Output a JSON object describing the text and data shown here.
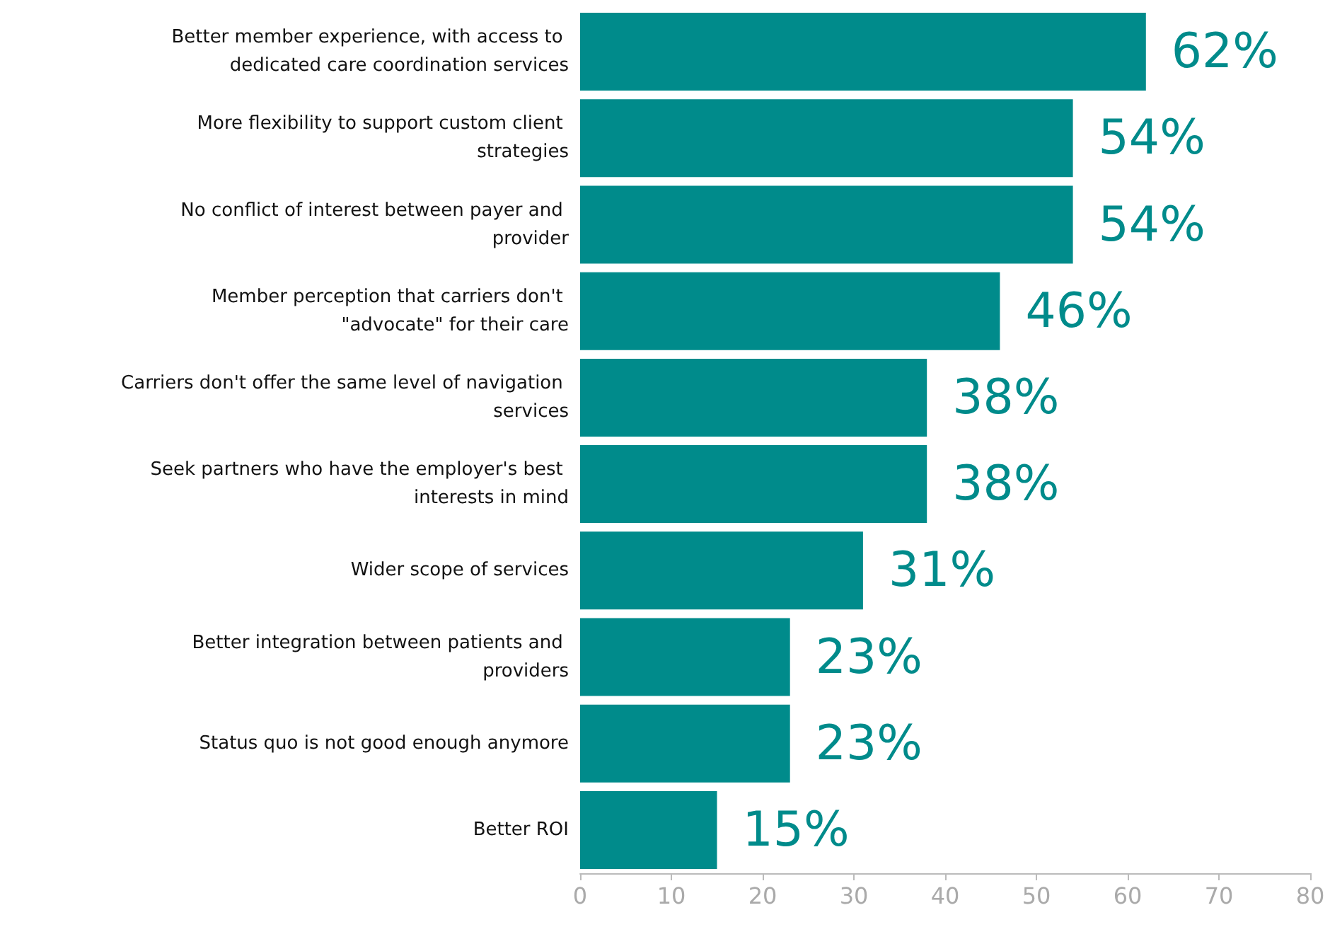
{
  "chart_data": {
    "type": "bar",
    "orientation": "horizontal",
    "categories": [
      "Better member experience, with access to dedicated care coordination services",
      "More flexibility to support custom client strategies",
      "No conflict of interest between payer and provider",
      "Member perception that carriers don't \"advocate\" for their care",
      "Carriers don't offer the same level of navigation services",
      "Seek partners who have the employer's best interests in mind",
      "Wider scope of services",
      "Better integration between patients and providers",
      "Status quo is not good enough anymore",
      "Better ROI"
    ],
    "values": [
      62,
      54,
      54,
      46,
      38,
      38,
      31,
      23,
      23,
      15
    ],
    "value_labels": [
      "62%",
      "54%",
      "54%",
      "46%",
      "38%",
      "38%",
      "31%",
      "23%",
      "23%",
      "15%"
    ],
    "color": "#008b8b",
    "xlim": [
      0,
      80
    ],
    "xticks": [
      0,
      10,
      20,
      30,
      40,
      50,
      60,
      70,
      80
    ],
    "grid": false
  }
}
